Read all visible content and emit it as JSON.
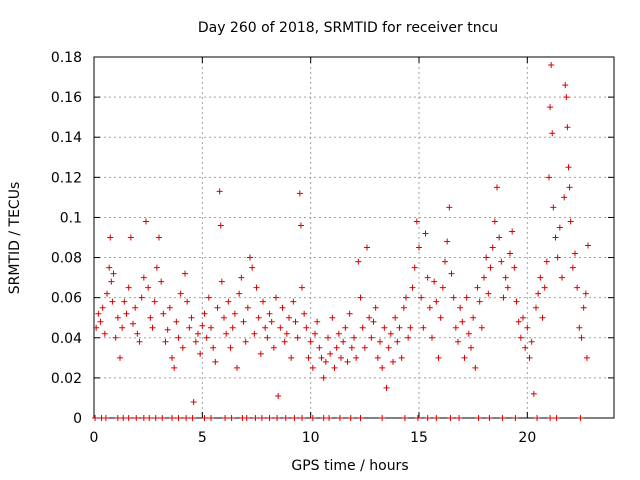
{
  "chart_data": {
    "type": "scatter",
    "title": "Day 260 of 2018, SRMTID for receiver tncu",
    "xlabel": "GPS time / hours",
    "ylabel": "SRMTID / TECUs",
    "xlim": [
      0,
      24
    ],
    "ylim": [
      0,
      0.18
    ],
    "xticks": [
      0,
      5,
      10,
      15,
      20
    ],
    "xtick_labels": [
      "0",
      "5",
      "10",
      "15",
      "20"
    ],
    "yticks": [
      0,
      0.02,
      0.04,
      0.06,
      0.08,
      0.1,
      0.12,
      0.14,
      0.16,
      0.18
    ],
    "ytick_labels": [
      "0",
      "0.02",
      "0.04",
      "0.06",
      "0.08",
      "0.1",
      "0.12",
      "0.14",
      "0.16",
      "0.18"
    ],
    "grid": true,
    "marker": "+",
    "color": "#dd0000",
    "series": [
      {
        "name": "SRMTID",
        "points": [
          [
            0.1,
            0.045
          ],
          [
            0.2,
            0.052
          ],
          [
            0.3,
            0.048
          ],
          [
            0.4,
            0.055
          ],
          [
            0.5,
            0.042
          ],
          [
            0.6,
            0.062
          ],
          [
            0.7,
            0.075
          ],
          [
            0.75,
            0.09
          ],
          [
            0.8,
            0.068
          ],
          [
            0.85,
            0.058
          ],
          [
            0.9,
            0.072
          ],
          [
            1.0,
            0.04
          ],
          [
            1.1,
            0.05
          ],
          [
            1.2,
            0.03
          ],
          [
            1.3,
            0.045
          ],
          [
            1.4,
            0.058
          ],
          [
            1.5,
            0.052
          ],
          [
            1.6,
            0.065
          ],
          [
            1.7,
            0.09
          ],
          [
            1.8,
            0.047
          ],
          [
            1.9,
            0.055
          ],
          [
            2.0,
            0.042
          ],
          [
            2.1,
            0.038
          ],
          [
            2.2,
            0.06
          ],
          [
            2.3,
            0.07
          ],
          [
            2.4,
            0.098
          ],
          [
            2.5,
            0.065
          ],
          [
            2.6,
            0.05
          ],
          [
            2.7,
            0.045
          ],
          [
            2.8,
            0.058
          ],
          [
            2.9,
            0.075
          ],
          [
            3.0,
            0.09
          ],
          [
            3.1,
            0.068
          ],
          [
            3.2,
            0.052
          ],
          [
            3.3,
            0.038
          ],
          [
            3.4,
            0.044
          ],
          [
            3.5,
            0.055
          ],
          [
            3.6,
            0.03
          ],
          [
            3.7,
            0.025
          ],
          [
            3.8,
            0.048
          ],
          [
            3.9,
            0.04
          ],
          [
            4.0,
            0.062
          ],
          [
            4.1,
            0.035
          ],
          [
            4.2,
            0.072
          ],
          [
            4.3,
            0.058
          ],
          [
            4.4,
            0.045
          ],
          [
            4.5,
            0.05
          ],
          [
            4.6,
            0.008
          ],
          [
            4.7,
            0.038
          ],
          [
            4.8,
            0.042
          ],
          [
            4.9,
            0.032
          ],
          [
            5.0,
            0.046
          ],
          [
            5.1,
            0.052
          ],
          [
            5.2,
            0.04
          ],
          [
            5.3,
            0.06
          ],
          [
            5.4,
            0.045
          ],
          [
            5.5,
            0.035
          ],
          [
            5.6,
            0.028
          ],
          [
            5.7,
            0.055
          ],
          [
            5.8,
            0.113
          ],
          [
            5.85,
            0.096
          ],
          [
            5.9,
            0.068
          ],
          [
            6.0,
            0.05
          ],
          [
            6.1,
            0.042
          ],
          [
            6.2,
            0.058
          ],
          [
            6.3,
            0.035
          ],
          [
            6.4,
            0.045
          ],
          [
            6.5,
            0.052
          ],
          [
            6.6,
            0.025
          ],
          [
            6.7,
            0.062
          ],
          [
            6.8,
            0.07
          ],
          [
            6.9,
            0.048
          ],
          [
            7.0,
            0.038
          ],
          [
            7.1,
            0.055
          ],
          [
            7.2,
            0.08
          ],
          [
            7.3,
            0.075
          ],
          [
            7.4,
            0.042
          ],
          [
            7.5,
            0.065
          ],
          [
            7.6,
            0.05
          ],
          [
            7.7,
            0.032
          ],
          [
            7.8,
            0.058
          ],
          [
            7.9,
            0.045
          ],
          [
            8.0,
            0.04
          ],
          [
            8.1,
            0.052
          ],
          [
            8.2,
            0.048
          ],
          [
            8.3,
            0.035
          ],
          [
            8.4,
            0.06
          ],
          [
            8.5,
            0.011
          ],
          [
            8.6,
            0.045
          ],
          [
            8.7,
            0.055
          ],
          [
            8.8,
            0.038
          ],
          [
            8.9,
            0.042
          ],
          [
            9.0,
            0.05
          ],
          [
            9.1,
            0.03
          ],
          [
            9.2,
            0.058
          ],
          [
            9.3,
            0.048
          ],
          [
            9.4,
            0.04
          ],
          [
            9.5,
            0.112
          ],
          [
            9.55,
            0.096
          ],
          [
            9.6,
            0.065
          ],
          [
            9.7,
            0.052
          ],
          [
            9.8,
            0.045
          ],
          [
            9.9,
            0.03
          ],
          [
            10.0,
            0.038
          ],
          [
            10.1,
            0.025
          ],
          [
            10.2,
            0.042
          ],
          [
            10.3,
            0.048
          ],
          [
            10.4,
            0.035
          ],
          [
            10.5,
            0.03
          ],
          [
            10.6,
            0.02
          ],
          [
            10.7,
            0.028
          ],
          [
            10.8,
            0.04
          ],
          [
            10.9,
            0.032
          ],
          [
            11.0,
            0.05
          ],
          [
            11.1,
            0.025
          ],
          [
            11.2,
            0.035
          ],
          [
            11.3,
            0.042
          ],
          [
            11.4,
            0.03
          ],
          [
            11.5,
            0.038
          ],
          [
            11.6,
            0.045
          ],
          [
            11.7,
            0.028
          ],
          [
            11.8,
            0.052
          ],
          [
            11.9,
            0.035
          ],
          [
            12.0,
            0.04
          ],
          [
            12.1,
            0.03
          ],
          [
            12.2,
            0.078
          ],
          [
            12.3,
            0.06
          ],
          [
            12.4,
            0.045
          ],
          [
            12.5,
            0.035
          ],
          [
            12.6,
            0.085
          ],
          [
            12.7,
            0.05
          ],
          [
            12.8,
            0.04
          ],
          [
            12.9,
            0.048
          ],
          [
            13.0,
            0.055
          ],
          [
            13.1,
            0.03
          ],
          [
            13.2,
            0.038
          ],
          [
            13.3,
            0.025
          ],
          [
            13.4,
            0.045
          ],
          [
            13.5,
            0.015
          ],
          [
            13.6,
            0.035
          ],
          [
            13.7,
            0.042
          ],
          [
            13.8,
            0.028
          ],
          [
            13.9,
            0.05
          ],
          [
            14.0,
            0.038
          ],
          [
            14.1,
            0.045
          ],
          [
            14.2,
            0.03
          ],
          [
            14.3,
            0.055
          ],
          [
            14.4,
            0.06
          ],
          [
            14.5,
            0.04
          ],
          [
            14.6,
            0.045
          ],
          [
            14.7,
            0.065
          ],
          [
            14.8,
            0.075
          ],
          [
            14.9,
            0.098
          ],
          [
            15.0,
            0.085
          ],
          [
            15.1,
            0.06
          ],
          [
            15.2,
            0.045
          ],
          [
            15.3,
            0.092
          ],
          [
            15.4,
            0.07
          ],
          [
            15.5,
            0.055
          ],
          [
            15.6,
            0.04
          ],
          [
            15.7,
            0.068
          ],
          [
            15.8,
            0.058
          ],
          [
            15.9,
            0.03
          ],
          [
            16.0,
            0.05
          ],
          [
            16.1,
            0.065
          ],
          [
            16.2,
            0.078
          ],
          [
            16.3,
            0.088
          ],
          [
            16.4,
            0.105
          ],
          [
            16.5,
            0.072
          ],
          [
            16.6,
            0.06
          ],
          [
            16.7,
            0.045
          ],
          [
            16.8,
            0.038
          ],
          [
            16.9,
            0.055
          ],
          [
            17.0,
            0.048
          ],
          [
            17.1,
            0.03
          ],
          [
            17.2,
            0.06
          ],
          [
            17.3,
            0.042
          ],
          [
            17.4,
            0.035
          ],
          [
            17.5,
            0.05
          ],
          [
            17.6,
            0.025
          ],
          [
            17.7,
            0.065
          ],
          [
            17.8,
            0.058
          ],
          [
            17.9,
            0.045
          ],
          [
            18.0,
            0.07
          ],
          [
            18.1,
            0.08
          ],
          [
            18.2,
            0.062
          ],
          [
            18.3,
            0.075
          ],
          [
            18.4,
            0.085
          ],
          [
            18.5,
            0.098
          ],
          [
            18.6,
            0.115
          ],
          [
            18.7,
            0.09
          ],
          [
            18.8,
            0.078
          ],
          [
            18.9,
            0.06
          ],
          [
            19.0,
            0.07
          ],
          [
            19.1,
            0.065
          ],
          [
            19.2,
            0.082
          ],
          [
            19.3,
            0.093
          ],
          [
            19.4,
            0.075
          ],
          [
            19.5,
            0.058
          ],
          [
            19.6,
            0.048
          ],
          [
            19.7,
            0.04
          ],
          [
            19.8,
            0.05
          ],
          [
            19.9,
            0.035
          ],
          [
            20.0,
            0.045
          ],
          [
            20.1,
            0.03
          ],
          [
            20.2,
            0.038
          ],
          [
            20.3,
            0.012
          ],
          [
            20.4,
            0.055
          ],
          [
            20.5,
            0.062
          ],
          [
            20.6,
            0.07
          ],
          [
            20.7,
            0.05
          ],
          [
            20.8,
            0.065
          ],
          [
            20.9,
            0.078
          ],
          [
            21.0,
            0.12
          ],
          [
            21.05,
            0.155
          ],
          [
            21.1,
            0.176
          ],
          [
            21.15,
            0.142
          ],
          [
            21.2,
            0.105
          ],
          [
            21.3,
            0.09
          ],
          [
            21.4,
            0.08
          ],
          [
            21.5,
            0.095
          ],
          [
            21.6,
            0.07
          ],
          [
            21.7,
            0.11
          ],
          [
            21.75,
            0.166
          ],
          [
            21.8,
            0.16
          ],
          [
            21.85,
            0.145
          ],
          [
            21.9,
            0.125
          ],
          [
            21.95,
            0.115
          ],
          [
            22.0,
            0.098
          ],
          [
            22.1,
            0.075
          ],
          [
            22.2,
            0.082
          ],
          [
            22.3,
            0.065
          ],
          [
            22.4,
            0.045
          ],
          [
            22.5,
            0.04
          ],
          [
            22.6,
            0.055
          ],
          [
            22.7,
            0.062
          ],
          [
            22.75,
            0.03
          ],
          [
            22.8,
            0.086
          ]
        ]
      }
    ],
    "zero_markers_x": [
      0.05,
      0.35,
      0.55,
      1.1,
      1.35,
      1.6,
      1.95,
      2.3,
      2.55,
      2.85,
      3.15,
      3.6,
      3.9,
      4.25,
      4.55,
      5.1,
      5.4,
      6.05,
      6.35,
      6.85,
      7.05,
      7.45,
      7.75,
      8.1,
      8.45,
      8.85,
      9.25,
      9.6,
      10.1,
      10.6,
      10.85,
      11.35,
      11.85,
      12.3,
      13.3,
      14.35,
      14.95,
      15.4,
      15.8,
      16.45,
      16.85,
      17.75,
      18.25,
      18.85,
      19.45,
      20.45,
      21.05,
      21.35,
      22.45
    ]
  }
}
